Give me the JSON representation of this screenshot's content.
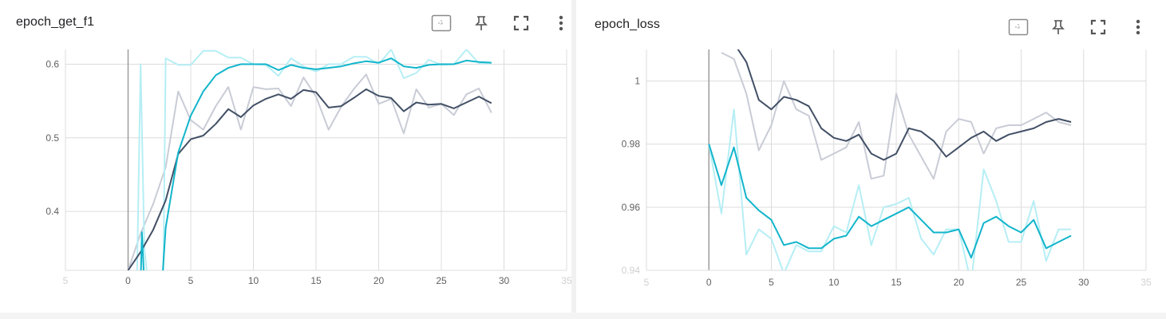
{
  "cards": [
    {
      "title": "epoch_get_f1",
      "toolbar": [
        "fit-domain-icon",
        "pin-icon",
        "fullscreen-icon",
        "more-vert-icon"
      ]
    },
    {
      "title": "epoch_loss",
      "toolbar": [
        "fit-domain-icon",
        "pin-icon",
        "fullscreen-icon",
        "more-vert-icon"
      ]
    }
  ],
  "colors": {
    "grid": "#dcdcdc",
    "axis_zero": "#9e9e9e",
    "train_smoothed": "#425066",
    "train_raw": "#c9ccd6",
    "val_smoothed": "#12b5cb",
    "val_raw": "#b6eef5"
  },
  "chart_data": [
    {
      "type": "line",
      "title": "epoch_get_f1",
      "xlim": [
        -5,
        35
      ],
      "ylim": [
        0.32,
        0.62
      ],
      "x_ticks": [
        "5",
        "0",
        "5",
        "10",
        "15",
        "20",
        "25",
        "30",
        "35"
      ],
      "x_tick_values": [
        -5,
        0,
        5,
        10,
        15,
        20,
        25,
        30,
        35
      ],
      "x_tick_faint": [
        true,
        false,
        false,
        false,
        false,
        false,
        false,
        false,
        true
      ],
      "y_ticks": [
        "0.4",
        "0.5",
        "0.6"
      ],
      "y_tick_values": [
        0.4,
        0.5,
        0.6
      ],
      "grid": true,
      "series": [
        {
          "role": "train_raw",
          "x": [
            0,
            1,
            2,
            3,
            4,
            5,
            6,
            7,
            8,
            9,
            10,
            11,
            12,
            13,
            14,
            15,
            16,
            17,
            18,
            19,
            20,
            21,
            22,
            23,
            24,
            25,
            26,
            27,
            28,
            29
          ],
          "y": [
            0.32,
            0.37,
            0.41,
            0.46,
            0.563,
            0.524,
            0.511,
            0.543,
            0.569,
            0.511,
            0.569,
            0.566,
            0.567,
            0.543,
            0.582,
            0.556,
            0.511,
            0.542,
            0.566,
            0.586,
            0.546,
            0.553,
            0.506,
            0.566,
            0.541,
            0.546,
            0.531,
            0.559,
            0.567,
            0.534
          ]
        },
        {
          "role": "train_smoothed",
          "x": [
            0,
            1,
            2,
            3,
            4,
            5,
            6,
            7,
            8,
            9,
            10,
            11,
            12,
            13,
            14,
            15,
            16,
            17,
            18,
            19,
            20,
            21,
            22,
            23,
            24,
            25,
            26,
            27,
            28,
            29
          ],
          "y": [
            0.32,
            0.345,
            0.375,
            0.415,
            0.478,
            0.498,
            0.503,
            0.519,
            0.539,
            0.528,
            0.544,
            0.553,
            0.559,
            0.553,
            0.565,
            0.562,
            0.541,
            0.543,
            0.554,
            0.566,
            0.557,
            0.554,
            0.536,
            0.548,
            0.545,
            0.546,
            0.54,
            0.548,
            0.556,
            0.547
          ]
        },
        {
          "role": "val_raw",
          "x": [
            0,
            0.7,
            1,
            1.3,
            1.6,
            2,
            2.4,
            2.8,
            3,
            4,
            5,
            6,
            7,
            8,
            9,
            10,
            11,
            12,
            13,
            14,
            15,
            16,
            17,
            18,
            19,
            20,
            21,
            22,
            23,
            24,
            25,
            26,
            27,
            28,
            29
          ],
          "y": [
            0.32,
            0.3,
            0.6,
            0.35,
            0.3,
            0.3,
            0.3,
            0.3,
            0.608,
            0.599,
            0.599,
            0.618,
            0.618,
            0.609,
            0.609,
            0.6,
            0.599,
            0.584,
            0.608,
            0.597,
            0.59,
            0.6,
            0.6,
            0.61,
            0.61,
            0.6,
            0.62,
            0.581,
            0.588,
            0.606,
            0.599,
            0.6,
            0.62,
            0.601,
            0.601
          ]
        },
        {
          "role": "val_smoothed",
          "x": [
            1,
            1.1,
            1.3,
            2.7,
            3,
            4,
            5,
            6,
            7,
            8,
            9,
            10,
            11,
            12,
            13,
            14,
            15,
            16,
            17,
            18,
            19,
            20,
            21,
            22,
            23,
            24,
            25,
            26,
            27,
            28,
            29
          ],
          "y": [
            0.3,
            0.372,
            0.3,
            0.3,
            0.378,
            0.48,
            0.53,
            0.563,
            0.585,
            0.595,
            0.6,
            0.6,
            0.6,
            0.592,
            0.599,
            0.595,
            0.593,
            0.595,
            0.597,
            0.601,
            0.604,
            0.602,
            0.608,
            0.597,
            0.595,
            0.599,
            0.6,
            0.6,
            0.605,
            0.603,
            0.602
          ]
        }
      ]
    },
    {
      "type": "line",
      "title": "epoch_loss",
      "xlim": [
        -5,
        35
      ],
      "ylim": [
        0.94,
        1.01
      ],
      "x_ticks": [
        "5",
        "0",
        "5",
        "10",
        "15",
        "20",
        "25",
        "30",
        "35"
      ],
      "x_tick_values": [
        -5,
        0,
        5,
        10,
        15,
        20,
        25,
        30,
        35
      ],
      "x_tick_faint": [
        true,
        false,
        false,
        false,
        false,
        false,
        false,
        false,
        true
      ],
      "y_ticks": [
        "0.94",
        "0.96",
        "0.98",
        "1"
      ],
      "y_tick_values": [
        0.94,
        0.96,
        0.98,
        1.0
      ],
      "y_tick_faint": [
        true,
        false,
        false,
        false
      ],
      "grid": true,
      "series": [
        {
          "role": "train_raw",
          "x": [
            1,
            2,
            3,
            4,
            5,
            6,
            7,
            8,
            9,
            10,
            11,
            12,
            13,
            14,
            15,
            16,
            17,
            18,
            19,
            20,
            21,
            22,
            23,
            24,
            25,
            26,
            27,
            28,
            29
          ],
          "y": [
            1.009,
            1.007,
            0.996,
            0.978,
            0.986,
            1.0,
            0.991,
            0.989,
            0.975,
            0.977,
            0.979,
            0.987,
            0.969,
            0.97,
            0.996,
            0.983,
            0.976,
            0.969,
            0.984,
            0.988,
            0.987,
            0.977,
            0.985,
            0.986,
            0.986,
            0.988,
            0.99,
            0.987,
            0.986
          ]
        },
        {
          "role": "train_smoothed",
          "x": [
            2,
            3,
            4,
            5,
            6,
            7,
            8,
            9,
            10,
            11,
            12,
            13,
            14,
            15,
            16,
            17,
            18,
            19,
            20,
            21,
            22,
            23,
            24,
            25,
            26,
            27,
            28,
            29
          ],
          "y": [
            1.012,
            1.006,
            0.994,
            0.991,
            0.995,
            0.994,
            0.992,
            0.985,
            0.982,
            0.981,
            0.983,
            0.977,
            0.975,
            0.977,
            0.985,
            0.984,
            0.981,
            0.976,
            0.979,
            0.982,
            0.984,
            0.981,
            0.983,
            0.984,
            0.985,
            0.987,
            0.988,
            0.987
          ]
        },
        {
          "role": "val_raw",
          "x": [
            0,
            1,
            2,
            3,
            4,
            5,
            6,
            7,
            8,
            9,
            10,
            11,
            12,
            13,
            14,
            15,
            16,
            17,
            18,
            19,
            20,
            21,
            22,
            23,
            24,
            25,
            26,
            27,
            28,
            29
          ],
          "y": [
            0.98,
            0.958,
            0.991,
            0.945,
            0.953,
            0.95,
            0.939,
            0.948,
            0.946,
            0.946,
            0.954,
            0.952,
            0.967,
            0.948,
            0.96,
            0.961,
            0.963,
            0.95,
            0.945,
            0.953,
            0.953,
            0.936,
            0.972,
            0.962,
            0.949,
            0.949,
            0.962,
            0.943,
            0.953,
            0.953
          ]
        },
        {
          "role": "val_smoothed",
          "x": [
            0,
            1,
            2,
            3,
            4,
            5,
            6,
            7,
            8,
            9,
            10,
            11,
            12,
            13,
            14,
            15,
            16,
            17,
            18,
            19,
            20,
            21,
            22,
            23,
            24,
            25,
            26,
            27,
            28,
            29
          ],
          "y": [
            0.98,
            0.967,
            0.979,
            0.963,
            0.959,
            0.956,
            0.948,
            0.949,
            0.947,
            0.947,
            0.95,
            0.951,
            0.957,
            0.954,
            0.956,
            0.958,
            0.96,
            0.956,
            0.952,
            0.952,
            0.953,
            0.944,
            0.955,
            0.957,
            0.954,
            0.952,
            0.956,
            0.947,
            0.949,
            0.951
          ]
        }
      ]
    }
  ]
}
